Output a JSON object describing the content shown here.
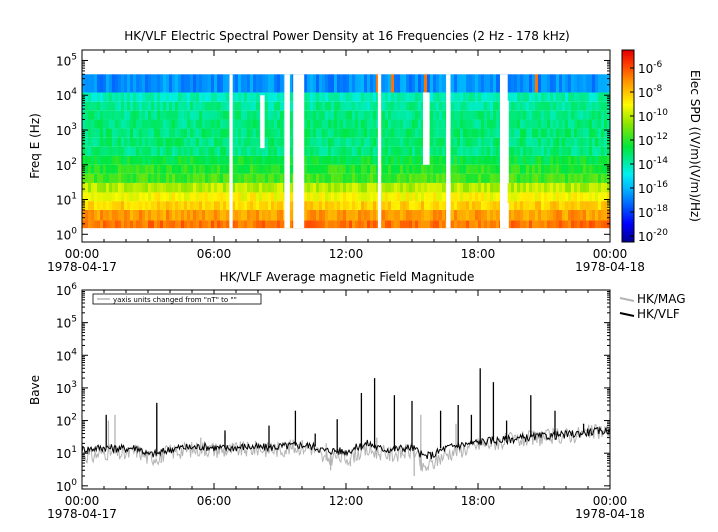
{
  "chart_data": [
    {
      "type": "heatmap",
      "title": "HK/VLF  Electric Spectral Power Density at 16 Frequencies (2 Hz - 178 kHz)",
      "ylabel": "Freq E (Hz)",
      "colorbar_label": "Elec SPD ((V/m)(V/m)/Hz)",
      "y_scale": "log",
      "ylim": [
        0.6,
        200000
      ],
      "y_ticks": [
        {
          "base": "10",
          "exp": "0",
          "value": 1
        },
        {
          "base": "10",
          "exp": "1",
          "value": 10
        },
        {
          "base": "10",
          "exp": "2",
          "value": 100
        },
        {
          "base": "10",
          "exp": "3",
          "value": 1000
        },
        {
          "base": "10",
          "exp": "4",
          "value": 10000
        },
        {
          "base": "10",
          "exp": "5",
          "value": 100000
        }
      ],
      "colorbar_ticks": [
        {
          "base": "10",
          "exp": "-6",
          "value": -6
        },
        {
          "base": "10",
          "exp": "-8",
          "value": -8
        },
        {
          "base": "10",
          "exp": "-10",
          "value": -10
        },
        {
          "base": "10",
          "exp": "-12",
          "value": -12
        },
        {
          "base": "10",
          "exp": "-14",
          "value": -14
        },
        {
          "base": "10",
          "exp": "-16",
          "value": -16
        },
        {
          "base": "10",
          "exp": "-18",
          "value": -18
        },
        {
          "base": "10",
          "exp": "-20",
          "value": -20
        }
      ],
      "colorbar_range": [
        -20.5,
        -4.5
      ],
      "x_ticks": [
        {
          "time": "00:00",
          "date": "1978-04-17",
          "hour": 0
        },
        {
          "time": "06:00",
          "date": "",
          "hour": 6
        },
        {
          "time": "12:00",
          "date": "",
          "hour": 12
        },
        {
          "time": "18:00",
          "date": "",
          "hour": 18
        },
        {
          "time": "00:00",
          "date": "1978-04-18",
          "hour": 24
        }
      ],
      "bands": [
        {
          "low": 1.5,
          "high": 2.5,
          "log_spd": -6.5
        },
        {
          "low": 2.5,
          "high": 5,
          "log_spd": -7.2
        },
        {
          "low": 5,
          "high": 9,
          "log_spd": -8.2
        },
        {
          "low": 9,
          "high": 16,
          "log_spd": -9.0
        },
        {
          "low": 16,
          "high": 30,
          "log_spd": -10.0
        },
        {
          "low": 30,
          "high": 55,
          "log_spd": -11.6
        },
        {
          "low": 55,
          "high": 100,
          "log_spd": -12.0
        },
        {
          "low": 100,
          "high": 180,
          "log_spd": -12.5
        },
        {
          "low": 180,
          "high": 330,
          "log_spd": -13.3
        },
        {
          "low": 330,
          "high": 600,
          "log_spd": -13.2
        },
        {
          "low": 600,
          "high": 1100,
          "log_spd": -13.2
        },
        {
          "low": 1100,
          "high": 2000,
          "log_spd": -13.3
        },
        {
          "low": 2000,
          "high": 3600,
          "log_spd": -13.4
        },
        {
          "low": 3600,
          "high": 6500,
          "log_spd": -13.6
        },
        {
          "low": 6500,
          "high": 12000,
          "log_spd": -14.0
        },
        {
          "low": 12000,
          "high": 40000,
          "log_spd": -16.6
        }
      ],
      "gaps_hours": [
        [
          6.7,
          6.85
        ],
        [
          9.2,
          9.45
        ],
        [
          9.6,
          10.1
        ],
        [
          13.45,
          13.6
        ],
        [
          16.55,
          16.75
        ],
        [
          19.0,
          19.35
        ]
      ],
      "partial_gaps": [
        {
          "start": 8.1,
          "end": 8.3,
          "low": 300,
          "high": 10000
        },
        {
          "start": 15.5,
          "end": 15.8,
          "low": 100,
          "high": 12000
        },
        {
          "start": 19.05,
          "end": 19.4,
          "low": 1.5,
          "high": 8
        },
        {
          "start": 19.05,
          "end": 19.4,
          "low": 30,
          "high": 7000
        }
      ]
    },
    {
      "type": "line",
      "title": "HK/VLF  Average magnetic Field Magnitude",
      "ylabel": "Bave",
      "y_scale": "log",
      "ylim": [
        0.8,
        1000000
      ],
      "annotation": "yaxis units changed from \"nT\" to \"\"",
      "y_ticks": [
        {
          "base": "10",
          "exp": "0",
          "value": 1
        },
        {
          "base": "10",
          "exp": "1",
          "value": 10
        },
        {
          "base": "10",
          "exp": "2",
          "value": 100
        },
        {
          "base": "10",
          "exp": "3",
          "value": 1000
        },
        {
          "base": "10",
          "exp": "4",
          "value": 10000
        },
        {
          "base": "10",
          "exp": "5",
          "value": 100000
        },
        {
          "base": "10",
          "exp": "6",
          "value": 1000000
        }
      ],
      "x_ticks": [
        {
          "time": "00:00",
          "date": "1978-04-17",
          "hour": 0
        },
        {
          "time": "06:00",
          "date": "",
          "hour": 6
        },
        {
          "time": "12:00",
          "date": "",
          "hour": 12
        },
        {
          "time": "18:00",
          "date": "",
          "hour": 18
        },
        {
          "time": "00:00",
          "date": "1978-04-18",
          "hour": 24
        }
      ],
      "legend_position": "right",
      "series": [
        {
          "name": "HK/MAG",
          "color": "#b4b4b4",
          "x_hours": [
            0,
            0.5,
            1,
            1.5,
            2,
            2.5,
            3,
            3.5,
            4,
            4.5,
            5,
            5.5,
            6,
            6.5,
            7,
            7.5,
            8,
            8.5,
            9,
            9.5,
            10,
            10.5,
            11,
            11.5,
            12,
            12.5,
            13,
            13.5,
            14,
            14.5,
            15,
            15.5,
            16,
            16.5,
            17,
            17.5,
            18,
            18.5,
            19,
            19.5,
            20,
            20.5,
            21,
            21.5,
            22,
            22.5,
            23,
            23.5,
            24
          ],
          "values": [
            9,
            8,
            11,
            10,
            9,
            12,
            7,
            8,
            11,
            12,
            13,
            14,
            13,
            12,
            13,
            13,
            14,
            13,
            13,
            15,
            16,
            14,
            6,
            8,
            7,
            10,
            12,
            11,
            9,
            10,
            12,
            3,
            5,
            9,
            12,
            14,
            18,
            20,
            22,
            25,
            26,
            28,
            30,
            33,
            35,
            38,
            42,
            45,
            48
          ],
          "spikes": [
            {
              "x": 1.2,
              "y": 100
            },
            {
              "x": 1.5,
              "y": 150
            },
            {
              "x": 3.4,
              "y": 300
            },
            {
              "x": 3.6,
              "y": 5
            },
            {
              "x": 5.4,
              "y": 30
            },
            {
              "x": 6.5,
              "y": 40
            },
            {
              "x": 11.1,
              "y": 20
            },
            {
              "x": 11.3,
              "y": 3
            },
            {
              "x": 12.2,
              "y": 4
            },
            {
              "x": 13.4,
              "y": 30
            },
            {
              "x": 15.1,
              "y": 2
            },
            {
              "x": 15.4,
              "y": 150
            },
            {
              "x": 17.0,
              "y": 80
            }
          ]
        },
        {
          "name": "HK/VLF",
          "color": "#000000",
          "x_hours": [
            0,
            0.5,
            1,
            1.5,
            2,
            2.5,
            3,
            3.5,
            4,
            4.5,
            5,
            5.5,
            6,
            6.5,
            7,
            7.5,
            8,
            8.5,
            9,
            9.5,
            10,
            10.5,
            11,
            11.5,
            12,
            12.5,
            13,
            13.5,
            14,
            14.5,
            15,
            15.5,
            16,
            16.5,
            17,
            17.5,
            18,
            18.5,
            19,
            19.5,
            20,
            20.5,
            21,
            21.5,
            22,
            22.5,
            23,
            23.5,
            24
          ],
          "values": [
            13,
            14,
            15,
            14,
            14,
            15,
            9,
            10,
            13,
            15,
            15,
            16,
            15,
            14,
            15,
            16,
            15,
            15,
            16,
            17,
            18,
            16,
            12,
            12,
            11,
            15,
            20,
            14,
            13,
            14,
            15,
            8,
            9,
            14,
            17,
            19,
            22,
            24,
            25,
            27,
            29,
            31,
            33,
            35,
            37,
            40,
            44,
            47,
            50
          ],
          "spikes": [
            {
              "x": 1.1,
              "y": 150
            },
            {
              "x": 3.4,
              "y": 350
            },
            {
              "x": 6.5,
              "y": 50
            },
            {
              "x": 8.5,
              "y": 70
            },
            {
              "x": 9.7,
              "y": 200
            },
            {
              "x": 10.6,
              "y": 40
            },
            {
              "x": 11.6,
              "y": 110
            },
            {
              "x": 12.7,
              "y": 700
            },
            {
              "x": 13.3,
              "y": 2000
            },
            {
              "x": 14.2,
              "y": 600
            },
            {
              "x": 15.0,
              "y": 400
            },
            {
              "x": 16.3,
              "y": 200
            },
            {
              "x": 17.1,
              "y": 300
            },
            {
              "x": 17.7,
              "y": 150
            },
            {
              "x": 18.1,
              "y": 4000
            },
            {
              "x": 18.7,
              "y": 1500
            },
            {
              "x": 19.3,
              "y": 100
            },
            {
              "x": 20.4,
              "y": 600
            },
            {
              "x": 21.5,
              "y": 200
            },
            {
              "x": 22.8,
              "y": 80
            }
          ]
        }
      ]
    }
  ]
}
